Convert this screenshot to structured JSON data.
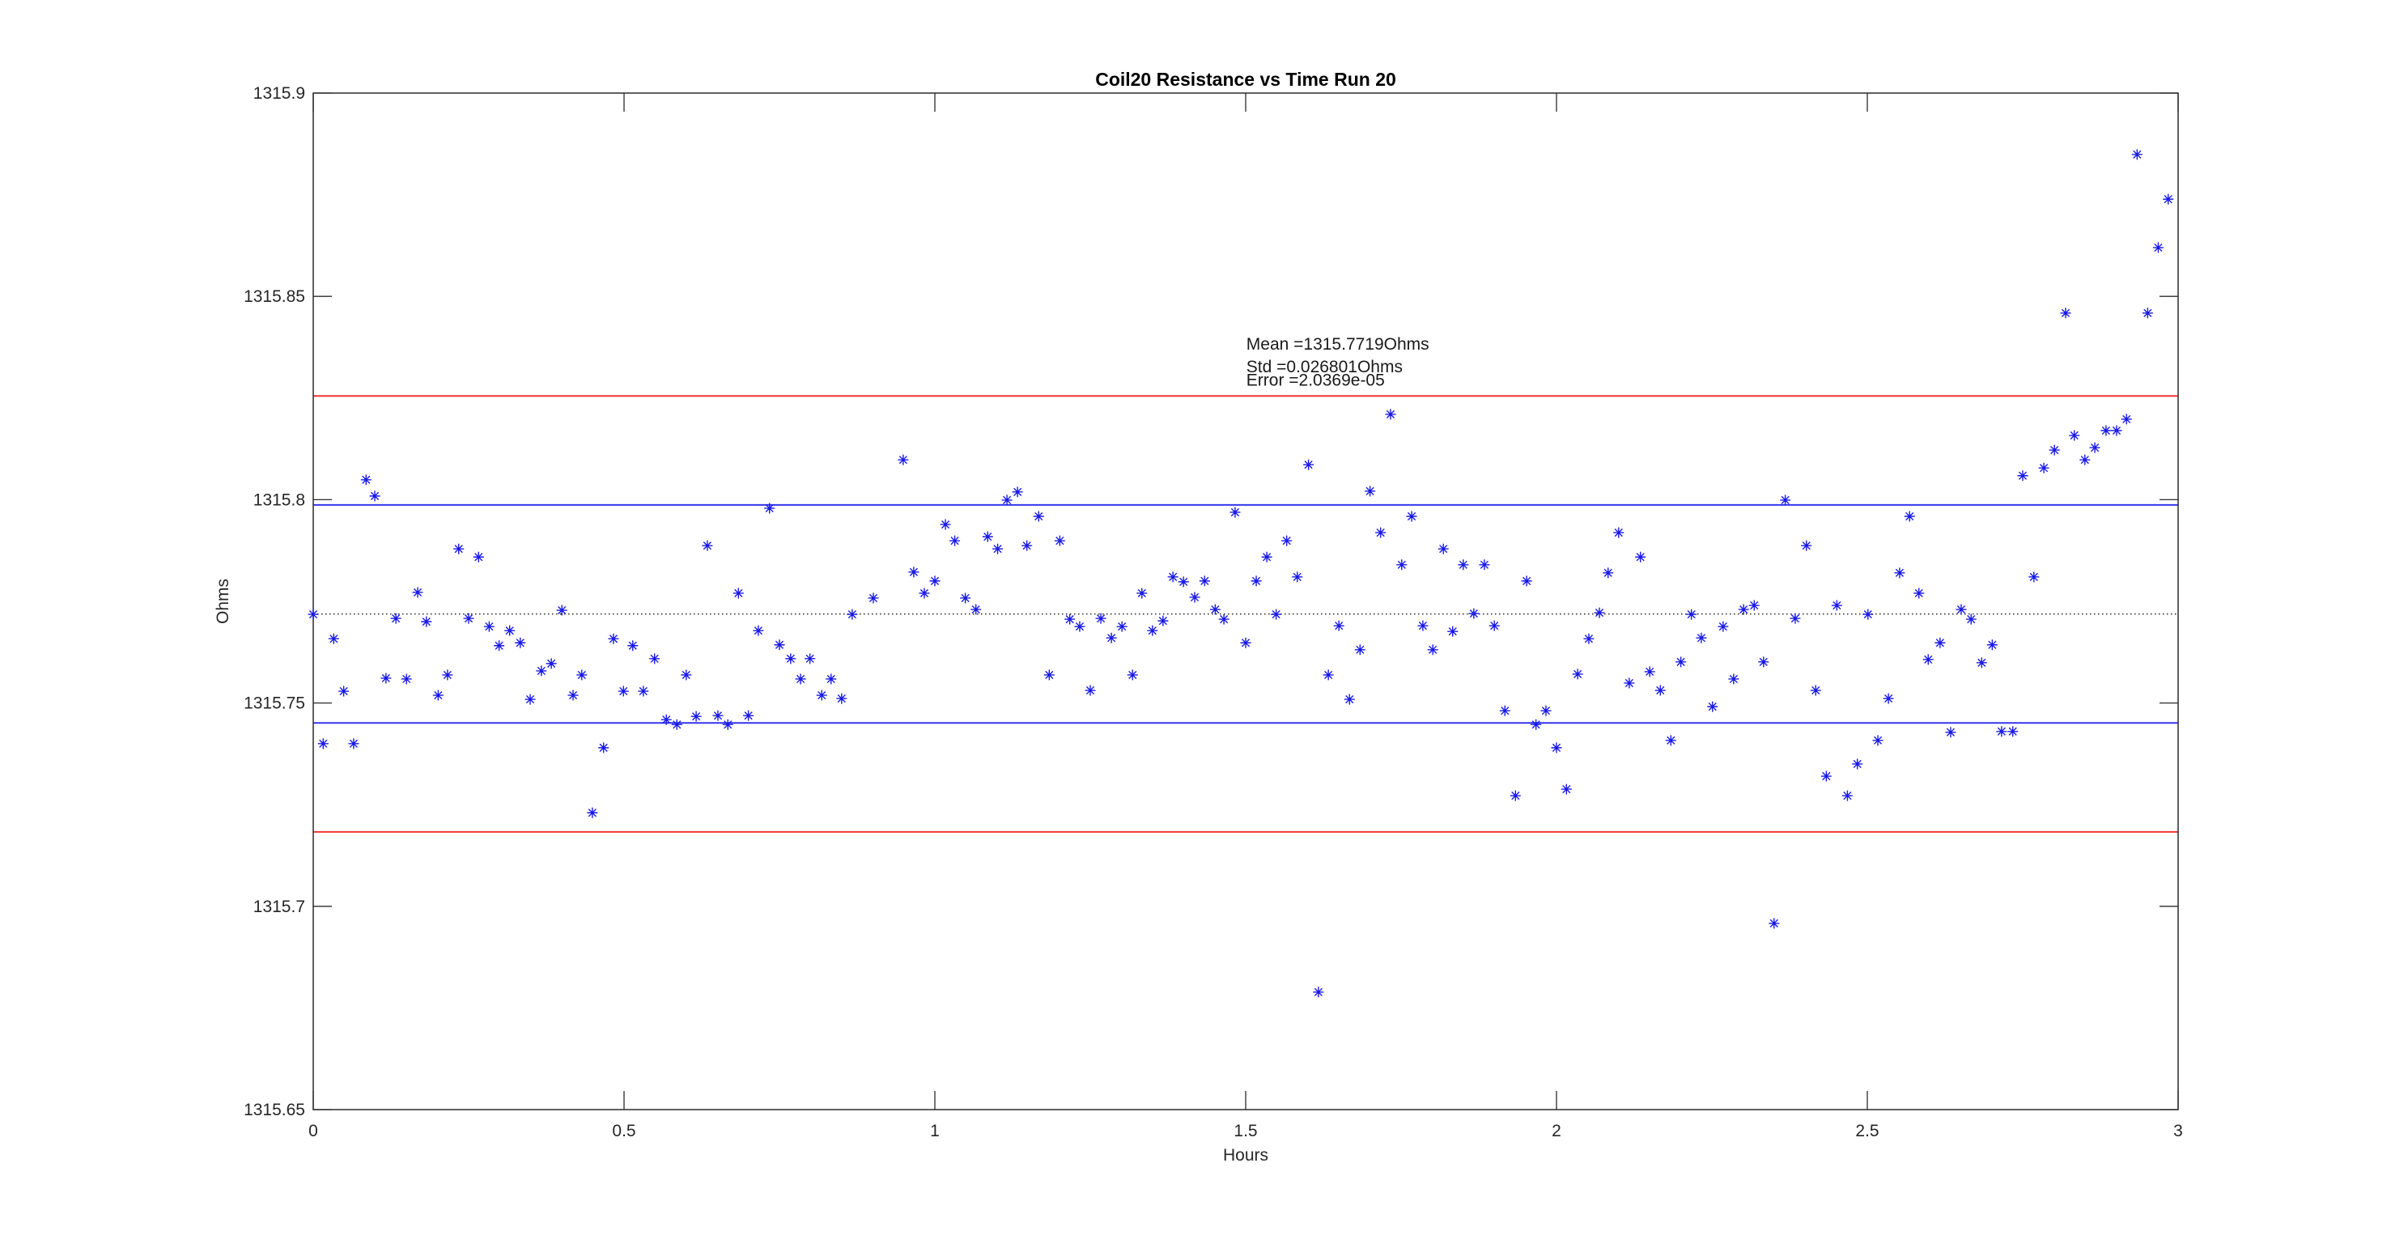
{
  "chart_data": {
    "type": "scatter",
    "title": "Coil20 Resistance vs Time Run 20",
    "xlabel": "Hours",
    "ylabel": "Ohms",
    "xlim": [
      0,
      3
    ],
    "ylim": [
      1315.65,
      1315.9
    ],
    "grid": false,
    "box": true,
    "xticks": [
      0,
      0.5,
      1,
      1.5,
      2,
      2.5,
      3
    ],
    "xtick_labels": [
      "0",
      "0.5",
      "1",
      "1.5",
      "2",
      "2.5",
      "3"
    ],
    "yticks": [
      1315.65,
      1315.7,
      1315.75,
      1315.8,
      1315.85,
      1315.9
    ],
    "ytick_labels": [
      "1315.65",
      "1315.7",
      "1315.75",
      "1315.8",
      "1315.85",
      "1315.9"
    ],
    "marker": "asterisk",
    "marker_color": "#1a1ae6",
    "reference_lines": [
      {
        "name": "mean",
        "value": 1315.7719,
        "style": "dotted",
        "color": "#222222"
      },
      {
        "name": "mean-plus-std",
        "value": 1315.7987,
        "style": "solid",
        "color": "#3535f0"
      },
      {
        "name": "mean-minus-std",
        "value": 1315.7451,
        "style": "solid",
        "color": "#3535f0"
      },
      {
        "name": "mean-plus-2std",
        "value": 1315.8255,
        "style": "solid",
        "color": "#f03434"
      },
      {
        "name": "mean-minus-2std",
        "value": 1315.7183,
        "style": "solid",
        "color": "#f03434"
      }
    ],
    "annotation": {
      "x": 1.501,
      "line_y": [
        1315.8369,
        1315.8313,
        1315.828
      ],
      "lines": [
        "Mean =1315.7719Ohms",
        "Std =0.026801Ohms",
        "Error =2.0369e-05"
      ],
      "color": "#1a1a1a"
    },
    "stats": {
      "mean_ohms": 1315.7719,
      "std_ohms": 0.026801,
      "error": "2.0369e-05"
    },
    "series": [
      {
        "name": "coil20-resistance",
        "points": [
          [
            0.0,
            1315.7718
          ],
          [
            0.016,
            1315.74
          ],
          [
            0.033,
            1315.7658
          ],
          [
            0.049,
            1315.7529
          ],
          [
            0.065,
            1315.74
          ],
          [
            0.085,
            1315.8049
          ],
          [
            0.099,
            1315.8009
          ],
          [
            0.117,
            1315.7561
          ],
          [
            0.133,
            1315.7708
          ],
          [
            0.15,
            1315.7559
          ],
          [
            0.168,
            1315.7772
          ],
          [
            0.182,
            1315.77
          ],
          [
            0.201,
            1315.7519
          ],
          [
            0.216,
            1315.7569
          ],
          [
            0.234,
            1315.7879
          ],
          [
            0.25,
            1315.7708
          ],
          [
            0.266,
            1315.7859
          ],
          [
            0.283,
            1315.7688
          ],
          [
            0.299,
            1315.7641
          ],
          [
            0.316,
            1315.7678
          ],
          [
            0.333,
            1315.7648
          ],
          [
            0.349,
            1315.7509
          ],
          [
            0.367,
            1315.7579
          ],
          [
            0.383,
            1315.7597
          ],
          [
            0.4,
            1315.7728
          ],
          [
            0.418,
            1315.7519
          ],
          [
            0.432,
            1315.7569
          ],
          [
            0.449,
            1315.723
          ],
          [
            0.467,
            1315.739
          ],
          [
            0.483,
            1315.7658
          ],
          [
            0.499,
            1315.7529
          ],
          [
            0.514,
            1315.7641
          ],
          [
            0.531,
            1315.7529
          ],
          [
            0.549,
            1315.7609
          ],
          [
            0.568,
            1315.7459
          ],
          [
            0.585,
            1315.7447
          ],
          [
            0.6,
            1315.7569
          ],
          [
            0.616,
            1315.7467
          ],
          [
            0.634,
            1315.7887
          ],
          [
            0.651,
            1315.7469
          ],
          [
            0.667,
            1315.7447
          ],
          [
            0.684,
            1315.777
          ],
          [
            0.7,
            1315.7469
          ],
          [
            0.716,
            1315.7678
          ],
          [
            0.734,
            1315.7979
          ],
          [
            0.75,
            1315.7643
          ],
          [
            0.768,
            1315.7609
          ],
          [
            0.784,
            1315.7559
          ],
          [
            0.799,
            1315.7609
          ],
          [
            0.818,
            1315.7519
          ],
          [
            0.833,
            1315.7559
          ],
          [
            0.85,
            1315.7511
          ],
          [
            0.867,
            1315.7718
          ],
          [
            0.901,
            1315.7758
          ],
          [
            0.949,
            1315.8098
          ],
          [
            0.966,
            1315.7822
          ],
          [
            0.983,
            1315.777
          ],
          [
            1.0,
            1315.78
          ],
          [
            1.017,
            1315.7939
          ],
          [
            1.032,
            1315.7899
          ],
          [
            1.049,
            1315.7758
          ],
          [
            1.066,
            1315.773
          ],
          [
            1.085,
            1315.7909
          ],
          [
            1.101,
            1315.7879
          ],
          [
            1.116,
            1315.7999
          ],
          [
            1.133,
            1315.8019
          ],
          [
            1.148,
            1315.7887
          ],
          [
            1.167,
            1315.7959
          ],
          [
            1.184,
            1315.7569
          ],
          [
            1.201,
            1315.7899
          ],
          [
            1.217,
            1315.7706
          ],
          [
            1.233,
            1315.7688
          ],
          [
            1.25,
            1315.7531
          ],
          [
            1.267,
            1315.7708
          ],
          [
            1.284,
            1315.766
          ],
          [
            1.301,
            1315.7688
          ],
          [
            1.318,
            1315.7569
          ],
          [
            1.333,
            1315.777
          ],
          [
            1.35,
            1315.7678
          ],
          [
            1.367,
            1315.7702
          ],
          [
            1.383,
            1315.781
          ],
          [
            1.4,
            1315.7798
          ],
          [
            1.418,
            1315.776
          ],
          [
            1.434,
            1315.78
          ],
          [
            1.451,
            1315.773
          ],
          [
            1.465,
            1315.7706
          ],
          [
            1.483,
            1315.7969
          ],
          [
            1.5,
            1315.7648
          ],
          [
            1.517,
            1315.78
          ],
          [
            1.534,
            1315.7859
          ],
          [
            1.549,
            1315.7718
          ],
          [
            1.566,
            1315.7899
          ],
          [
            1.583,
            1315.781
          ],
          [
            1.601,
            1315.8086
          ],
          [
            1.617,
            1315.6789
          ],
          [
            1.633,
            1315.7569
          ],
          [
            1.65,
            1315.769
          ],
          [
            1.667,
            1315.7509
          ],
          [
            1.684,
            1315.7631
          ],
          [
            1.7,
            1315.8021
          ],
          [
            1.717,
            1315.7919
          ],
          [
            1.733,
            1315.821
          ],
          [
            1.751,
            1315.784
          ],
          [
            1.767,
            1315.7959
          ],
          [
            1.785,
            1315.769
          ],
          [
            1.801,
            1315.7631
          ],
          [
            1.818,
            1315.7879
          ],
          [
            1.833,
            1315.7676
          ],
          [
            1.85,
            1315.784
          ],
          [
            1.867,
            1315.772
          ],
          [
            1.884,
            1315.784
          ],
          [
            1.9,
            1315.769
          ],
          [
            1.917,
            1315.7481
          ],
          [
            1.934,
            1315.7272
          ],
          [
            1.952,
            1315.78
          ],
          [
            1.967,
            1315.7447
          ],
          [
            1.983,
            1315.7481
          ],
          [
            2.0,
            1315.739
          ],
          [
            2.016,
            1315.7288
          ],
          [
            2.034,
            1315.7571
          ],
          [
            2.052,
            1315.7658
          ],
          [
            2.069,
            1315.7722
          ],
          [
            2.083,
            1315.782
          ],
          [
            2.1,
            1315.7919
          ],
          [
            2.117,
            1315.7549
          ],
          [
            2.135,
            1315.7859
          ],
          [
            2.15,
            1315.7577
          ],
          [
            2.167,
            1315.7531
          ],
          [
            2.184,
            1315.7408
          ],
          [
            2.2,
            1315.7601
          ],
          [
            2.217,
            1315.7718
          ],
          [
            2.233,
            1315.766
          ],
          [
            2.251,
            1315.7491
          ],
          [
            2.268,
            1315.7688
          ],
          [
            2.285,
            1315.7559
          ],
          [
            2.301,
            1315.773
          ],
          [
            2.318,
            1315.774
          ],
          [
            2.333,
            1315.7601
          ],
          [
            2.35,
            1315.6958
          ],
          [
            2.368,
            1315.7999
          ],
          [
            2.384,
            1315.7708
          ],
          [
            2.402,
            1315.7887
          ],
          [
            2.417,
            1315.7531
          ],
          [
            2.434,
            1315.732
          ],
          [
            2.451,
            1315.774
          ],
          [
            2.468,
            1315.7272
          ],
          [
            2.484,
            1315.735
          ],
          [
            2.501,
            1315.7718
          ],
          [
            2.517,
            1315.7408
          ],
          [
            2.534,
            1315.7511
          ],
          [
            2.552,
            1315.782
          ],
          [
            2.568,
            1315.7959
          ],
          [
            2.583,
            1315.777
          ],
          [
            2.598,
            1315.7607
          ],
          [
            2.617,
            1315.7648
          ],
          [
            2.634,
            1315.7428
          ],
          [
            2.651,
            1315.773
          ],
          [
            2.667,
            1315.7706
          ],
          [
            2.684,
            1315.7599
          ],
          [
            2.701,
            1315.7643
          ],
          [
            2.716,
            1315.743
          ],
          [
            2.734,
            1315.743
          ],
          [
            2.75,
            1315.8059
          ],
          [
            2.768,
            1315.781
          ],
          [
            2.784,
            1315.8078
          ],
          [
            2.801,
            1315.8122
          ],
          [
            2.819,
            1315.8459
          ],
          [
            2.833,
            1315.8158
          ],
          [
            2.85,
            1315.8098
          ],
          [
            2.866,
            1315.8128
          ],
          [
            2.884,
            1315.817
          ],
          [
            2.901,
            1315.817
          ],
          [
            2.917,
            1315.8198
          ],
          [
            2.934,
            1315.8849
          ],
          [
            2.951,
            1315.8459
          ],
          [
            2.968,
            1315.862
          ],
          [
            2.984,
            1315.8739
          ]
        ]
      }
    ],
    "style": {
      "axis_color": "#2b2b2b",
      "tick_label_color": "#262626",
      "title_color": "#000000",
      "background": "#ffffff"
    }
  }
}
